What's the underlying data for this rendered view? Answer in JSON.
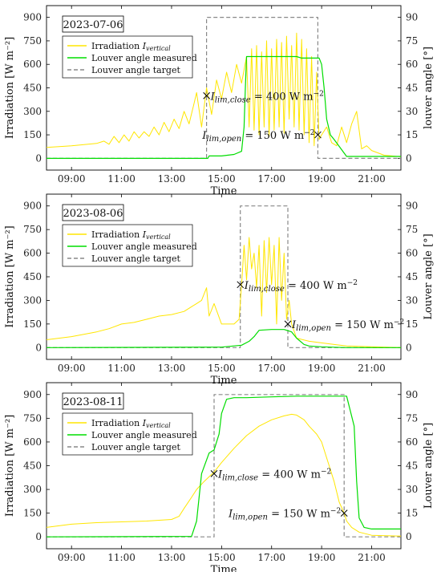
{
  "chart_data": [
    {
      "type": "line",
      "date": "2023-07-06",
      "xlabel": "Time",
      "ylabel_left": "Irradiation [W m⁻²]",
      "ylabel_right": "louver angle [°]",
      "xlim": [
        8.0,
        22.17
      ],
      "ylim_left": [
        -75,
        975
      ],
      "ylim_right": [
        -7.5,
        97.5
      ],
      "xticks": [
        9,
        11,
        13,
        15,
        17,
        19,
        21
      ],
      "xtick_labels": [
        "09:00",
        "11:00",
        "13:00",
        "15:00",
        "17:00",
        "19:00",
        "21:00"
      ],
      "yticks_left": [
        0,
        150,
        300,
        450,
        600,
        750,
        900
      ],
      "yticks_right": [
        0,
        15,
        30,
        45,
        60,
        75,
        90
      ],
      "legend": [
        "Irradiation I_vertical",
        "Louver angle measured",
        "Louver angle target"
      ],
      "colors": {
        "irradiation": "#ffe600",
        "measured": "#00dd00",
        "target": "#888888"
      },
      "series": [
        {
          "name": "Irradiation I_vertical",
          "axis": "left",
          "x": [
            8.0,
            9.0,
            10.0,
            10.3,
            10.5,
            10.7,
            10.9,
            11.1,
            11.3,
            11.5,
            11.7,
            11.9,
            12.1,
            12.3,
            12.5,
            12.7,
            12.9,
            13.1,
            13.3,
            13.5,
            13.7,
            13.9,
            14.0,
            14.2,
            14.4,
            14.6,
            14.8,
            15.0,
            15.2,
            15.4,
            15.6,
            15.8,
            16.0,
            16.1,
            16.2,
            16.3,
            16.4,
            16.5,
            16.6,
            16.7,
            16.8,
            16.9,
            17.0,
            17.1,
            17.2,
            17.3,
            17.4,
            17.5,
            17.6,
            17.7,
            17.8,
            17.9,
            18.0,
            18.1,
            18.2,
            18.3,
            18.4,
            18.5,
            18.6,
            18.7,
            18.8,
            18.9,
            19.0,
            19.2,
            19.4,
            19.6,
            19.8,
            20.0,
            20.2,
            20.4,
            20.6,
            20.8,
            21.0,
            21.5,
            22.17
          ],
          "y": [
            70,
            80,
            95,
            110,
            90,
            140,
            100,
            150,
            110,
            170,
            130,
            170,
            140,
            200,
            150,
            230,
            170,
            250,
            190,
            300,
            220,
            350,
            420,
            200,
            450,
            280,
            500,
            380,
            550,
            420,
            600,
            480,
            650,
            200,
            700,
            180,
            720,
            150,
            680,
            200,
            750,
            140,
            700,
            180,
            760,
            200,
            740,
            160,
            780,
            250,
            720,
            200,
            800,
            180,
            760,
            150,
            700,
            100,
            650,
            80,
            550,
            120,
            150,
            200,
            100,
            80,
            200,
            100,
            220,
            300,
            60,
            80,
            50,
            20,
            10
          ]
        },
        {
          "name": "Louver angle measured",
          "axis": "right",
          "x": [
            8.0,
            14.45,
            14.5,
            15.0,
            15.5,
            15.8,
            15.9,
            15.95,
            16.0,
            17.0,
            18.0,
            18.2,
            18.9,
            19.0,
            19.1,
            19.2,
            19.35,
            19.5,
            20.0,
            21.0,
            22.17
          ],
          "y": [
            0,
            0,
            1.5,
            1.5,
            2.5,
            4.5,
            20,
            45,
            65,
            65,
            65,
            64,
            64,
            60,
            45,
            25,
            15,
            12,
            1.2,
            1.2,
            1.2
          ]
        },
        {
          "name": "Louver angle target",
          "axis": "right",
          "x": [
            8.0,
            14.4,
            14.4,
            18.85,
            18.85,
            22.17
          ],
          "y": [
            0,
            0,
            90,
            90,
            0,
            0
          ]
        }
      ],
      "annotations": [
        {
          "x": 14.4,
          "y": 400,
          "marker": "x",
          "label": "I_lim,close = 400 W m⁻²"
        },
        {
          "x": 18.85,
          "y": 150,
          "marker": "x",
          "label": "I_lim,open = 150 W m⁻²"
        }
      ],
      "grid": false
    },
    {
      "type": "line",
      "date": "2023-08-06",
      "xlabel": "Time",
      "ylabel_left": "Irradiation [W m⁻²]",
      "ylabel_right": "Louver angle [°]",
      "xlim": [
        8.0,
        22.17
      ],
      "ylim_left": [
        -75,
        975
      ],
      "ylim_right": [
        -7.5,
        97.5
      ],
      "xticks": [
        9,
        11,
        13,
        15,
        17,
        19,
        21
      ],
      "xtick_labels": [
        "09:00",
        "11:00",
        "13:00",
        "15:00",
        "17:00",
        "19:00",
        "21:00"
      ],
      "yticks_left": [
        0,
        150,
        300,
        450,
        600,
        750,
        900
      ],
      "yticks_right": [
        0,
        15,
        30,
        45,
        60,
        75,
        90
      ],
      "legend": [
        "Irradiation I_vertical",
        "Louver angle measured",
        "Louver angle target"
      ],
      "colors": {
        "irradiation": "#ffe600",
        "measured": "#00dd00",
        "target": "#888888"
      },
      "series": [
        {
          "name": "Irradiation I_vertical",
          "axis": "left",
          "x": [
            8.0,
            9.0,
            10.0,
            10.5,
            11.0,
            11.5,
            12.0,
            12.5,
            13.0,
            13.5,
            13.8,
            14.0,
            14.2,
            14.4,
            14.5,
            14.7,
            15.0,
            15.5,
            15.7,
            15.8,
            15.9,
            16.0,
            16.1,
            16.2,
            16.3,
            16.4,
            16.5,
            16.6,
            16.7,
            16.8,
            16.9,
            17.0,
            17.1,
            17.2,
            17.3,
            17.4,
            17.5,
            17.6,
            17.7,
            17.8,
            18.0,
            18.5,
            19.0,
            19.5,
            20.0,
            21.0,
            22.17
          ],
          "y": [
            50,
            70,
            100,
            120,
            150,
            160,
            180,
            200,
            210,
            230,
            260,
            280,
            300,
            380,
            200,
            280,
            150,
            150,
            180,
            400,
            650,
            430,
            700,
            500,
            600,
            380,
            650,
            200,
            680,
            350,
            700,
            400,
            650,
            150,
            700,
            300,
            600,
            180,
            300,
            150,
            60,
            40,
            30,
            20,
            10,
            5,
            0
          ]
        },
        {
          "name": "Louver angle measured",
          "axis": "right",
          "x": [
            8.0,
            15.0,
            15.8,
            16.1,
            16.3,
            16.5,
            17.0,
            17.5,
            17.8,
            18.0,
            18.3,
            18.5,
            19.0,
            20.0,
            22.17
          ],
          "y": [
            0,
            0.3,
            1.5,
            4,
            7,
            11,
            11.5,
            11.5,
            10,
            6,
            2,
            1,
            0.5,
            0,
            0
          ]
        },
        {
          "name": "Louver angle target",
          "axis": "right",
          "x": [
            8.0,
            15.75,
            15.75,
            17.65,
            17.65,
            22.17
          ],
          "y": [
            0,
            0,
            90,
            90,
            0,
            0
          ]
        }
      ],
      "annotations": [
        {
          "x": 15.75,
          "y": 400,
          "marker": "x",
          "label": "I_lim,close = 400 W m⁻²"
        },
        {
          "x": 17.65,
          "y": 150,
          "marker": "x",
          "label": "I_lim,open = 150 W m⁻²"
        }
      ],
      "grid": false
    },
    {
      "type": "line",
      "date": "2023-08-11",
      "xlabel": "Time",
      "ylabel_left": "Irradiation [W m⁻²]",
      "ylabel_right": "Louver angle [°]",
      "xlim": [
        8.0,
        22.17
      ],
      "ylim_left": [
        -75,
        975
      ],
      "ylim_right": [
        -7.5,
        97.5
      ],
      "xticks": [
        9,
        11,
        13,
        15,
        17,
        19,
        21
      ],
      "xtick_labels": [
        "09:00",
        "11:00",
        "13:00",
        "15:00",
        "17:00",
        "19:00",
        "21:00"
      ],
      "yticks_left": [
        0,
        150,
        300,
        450,
        600,
        750,
        900
      ],
      "yticks_right": [
        0,
        15,
        30,
        45,
        60,
        75,
        90
      ],
      "legend": [
        "Irradiation I_vertical",
        "Louver angle measured",
        "Louver angle target"
      ],
      "colors": {
        "irradiation": "#ffe600",
        "measured": "#00dd00",
        "target": "#888888"
      },
      "series": [
        {
          "name": "Irradiation I_vertical",
          "axis": "left",
          "x": [
            8.0,
            9.0,
            10.0,
            11.0,
            12.0,
            12.5,
            13.0,
            13.3,
            13.5,
            13.8,
            14.0,
            14.3,
            14.7,
            15.0,
            15.5,
            16.0,
            16.5,
            17.0,
            17.5,
            17.8,
            18.0,
            18.3,
            18.5,
            18.8,
            19.0,
            19.3,
            19.5,
            19.7,
            19.9,
            20.0,
            20.2,
            20.5,
            21.0,
            22.17
          ],
          "y": [
            60,
            80,
            90,
            95,
            100,
            105,
            110,
            130,
            180,
            250,
            300,
            350,
            410,
            470,
            560,
            640,
            700,
            740,
            765,
            775,
            770,
            740,
            700,
            650,
            600,
            450,
            350,
            220,
            150,
            100,
            60,
            30,
            10,
            5
          ]
        },
        {
          "name": "Louver angle measured",
          "axis": "right",
          "x": [
            8.0,
            13.8,
            14.0,
            14.2,
            14.5,
            14.7,
            14.9,
            15.0,
            15.2,
            15.5,
            16.0,
            17.0,
            18.0,
            19.0,
            20.0,
            20.3,
            20.4,
            20.5,
            20.7,
            21.0,
            22.17
          ],
          "y": [
            0,
            0.3,
            10,
            40,
            53,
            55,
            65,
            78,
            87,
            88,
            88,
            88.5,
            89,
            89,
            89,
            70,
            35,
            12,
            6,
            5,
            5
          ]
        },
        {
          "name": "Louver angle target",
          "axis": "right",
          "x": [
            8.0,
            14.7,
            14.7,
            19.9,
            19.9,
            22.17
          ],
          "y": [
            0,
            0,
            90,
            90,
            0,
            0
          ]
        }
      ],
      "annotations": [
        {
          "x": 14.7,
          "y": 400,
          "marker": "x",
          "label": "I_lim,close = 400 W m⁻²"
        },
        {
          "x": 19.9,
          "y": 150,
          "marker": "x",
          "label": "I_lim,open = 150 W m⁻²"
        }
      ],
      "grid": false
    }
  ]
}
